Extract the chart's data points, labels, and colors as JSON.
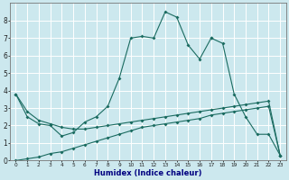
{
  "xlabel": "Humidex (Indice chaleur)",
  "background_color": "#cce8ee",
  "grid_color": "#ffffff",
  "line_color": "#1a6b60",
  "tick_label_color": "#222222",
  "xlabel_color": "#000080",
  "line1_x": [
    0,
    1,
    2,
    3,
    4,
    5,
    6,
    7,
    8,
    9,
    10,
    11,
    12,
    13,
    14,
    15,
    16,
    17
  ],
  "line1_y": [
    3.8,
    2.5,
    2.1,
    2.0,
    1.4,
    1.6,
    2.2,
    2.5,
    3.1,
    4.7,
    7.0,
    7.1,
    7.0,
    8.5,
    8.2,
    6.6,
    5.8,
    7.0
  ],
  "line2_x": [
    17,
    18,
    19,
    20,
    21,
    22,
    23
  ],
  "line2_y": [
    7.0,
    6.7,
    3.8,
    2.5,
    1.5,
    1.5,
    0.3
  ],
  "line3_x": [
    0,
    1,
    2,
    3,
    4,
    5,
    6,
    7,
    8,
    9,
    10,
    11,
    12,
    13,
    14,
    15,
    16,
    17,
    18,
    19,
    20,
    21,
    22,
    23
  ],
  "line3_y": [
    3.8,
    2.8,
    2.3,
    2.1,
    1.9,
    1.8,
    1.8,
    1.9,
    2.0,
    2.1,
    2.2,
    2.3,
    2.4,
    2.5,
    2.6,
    2.7,
    2.8,
    2.9,
    3.0,
    3.1,
    3.2,
    3.3,
    3.4,
    0.3
  ],
  "line4_x": [
    0,
    1,
    2,
    3,
    4,
    5,
    6,
    7,
    8,
    9,
    10,
    11,
    12,
    13,
    14,
    15,
    16,
    17,
    18,
    19,
    20,
    21,
    22,
    23
  ],
  "line4_y": [
    0.0,
    0.1,
    0.2,
    0.4,
    0.5,
    0.7,
    0.9,
    1.1,
    1.3,
    1.5,
    1.7,
    1.9,
    2.0,
    2.1,
    2.2,
    2.3,
    2.4,
    2.6,
    2.7,
    2.8,
    2.9,
    3.0,
    3.1,
    0.3
  ],
  "xlim": [
    -0.5,
    23.5
  ],
  "ylim": [
    0,
    9
  ],
  "yticks": [
    0,
    1,
    2,
    3,
    4,
    5,
    6,
    7,
    8
  ],
  "xticks": [
    0,
    1,
    2,
    3,
    4,
    5,
    6,
    7,
    8,
    9,
    10,
    11,
    12,
    13,
    14,
    15,
    16,
    17,
    18,
    19,
    20,
    21,
    22,
    23
  ]
}
